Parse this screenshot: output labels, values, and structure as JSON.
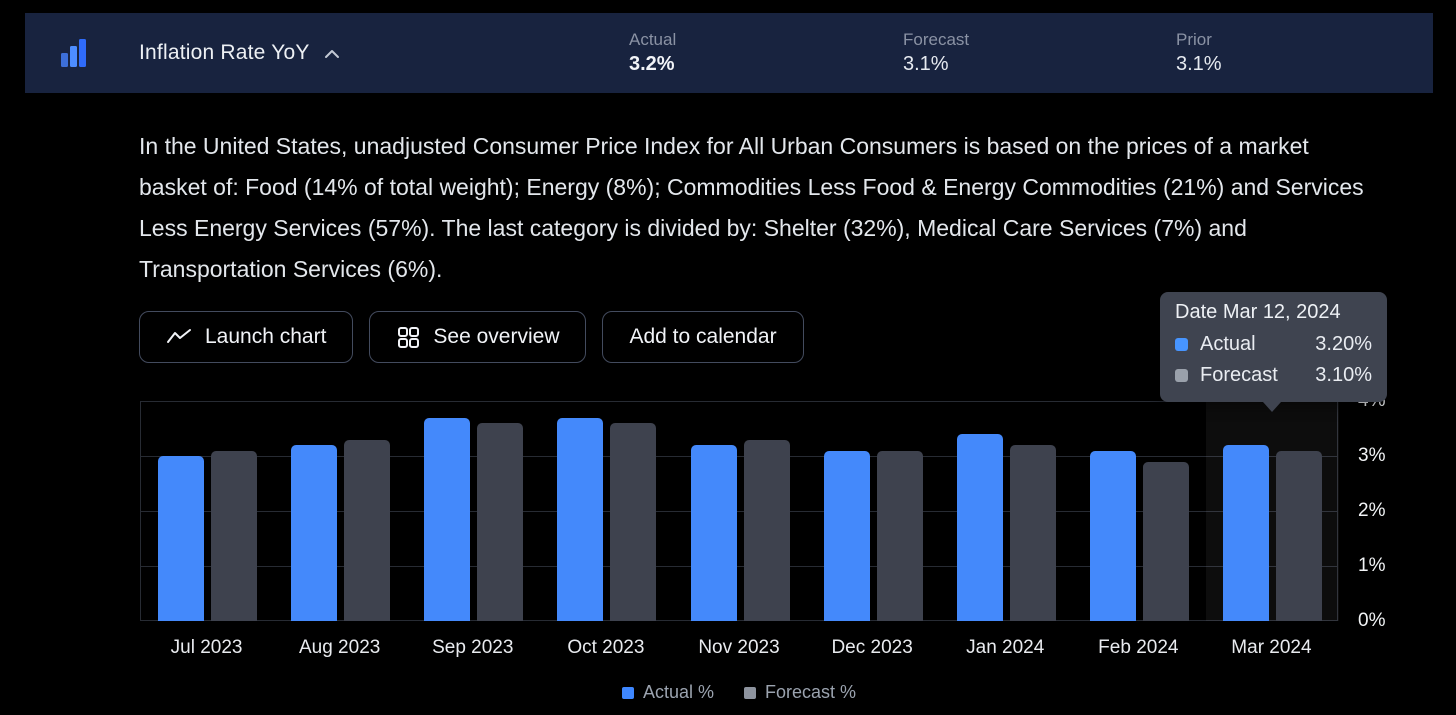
{
  "header": {
    "title": "Inflation Rate YoY",
    "collapse_icon": "chevron-up-icon",
    "metrics": [
      {
        "label": "Actual",
        "value": "3.2%"
      },
      {
        "label": "Forecast",
        "value": "3.1%"
      },
      {
        "label": "Prior",
        "value": "3.1%"
      }
    ]
  },
  "description": "In the United States, unadjusted Consumer Price Index for All Urban Consumers is based on the prices of a market basket of: Food (14% of total weight); Energy (8%); Commodities Less Food & Energy Commodities (21%) and Services Less Energy Services (57%). The last category is divided by: Shelter (32%), Medical Care Services (7%) and Transportation Services (6%).",
  "buttons": [
    {
      "label": "Launch chart",
      "icon": "line-chart-icon"
    },
    {
      "label": "See overview",
      "icon": "grid-icon"
    },
    {
      "label": "Add to calendar",
      "icon": null
    }
  ],
  "tooltip": {
    "date_label": "Date",
    "date_value": "Mar 12, 2024",
    "rows": [
      {
        "label": "Actual",
        "value": "3.20%",
        "color": "#4795ff"
      },
      {
        "label": "Forecast",
        "value": "3.10%",
        "color": "#9aa1ab"
      }
    ]
  },
  "chart_data": {
    "type": "bar",
    "title": "Inflation Rate YoY",
    "categories": [
      "Jul 2023",
      "Aug 2023",
      "Sep 2023",
      "Oct 2023",
      "Nov 2023",
      "Dec 2023",
      "Jan 2024",
      "Feb 2024",
      "Mar 2024"
    ],
    "series": [
      {
        "name": "Actual %",
        "color": "#4489fb",
        "values": [
          3.0,
          3.2,
          3.7,
          3.7,
          3.2,
          3.1,
          3.4,
          3.1,
          3.2
        ]
      },
      {
        "name": "Forecast %",
        "color": "#3e424e",
        "values": [
          3.1,
          3.3,
          3.6,
          3.6,
          3.3,
          3.1,
          3.2,
          2.9,
          3.1
        ]
      }
    ],
    "ylim": [
      0,
      4
    ],
    "yticks": [
      "4%",
      "3%",
      "2%",
      "1%",
      "0%"
    ],
    "grid": true,
    "legend_position": "bottom",
    "highlighted_category": "Mar 2024"
  },
  "colors": {
    "accent_blue": "#4489fb",
    "forecast_gray": "#3e424e",
    "header_navy": "#18233f",
    "tooltip_bg": "#3f4450"
  }
}
